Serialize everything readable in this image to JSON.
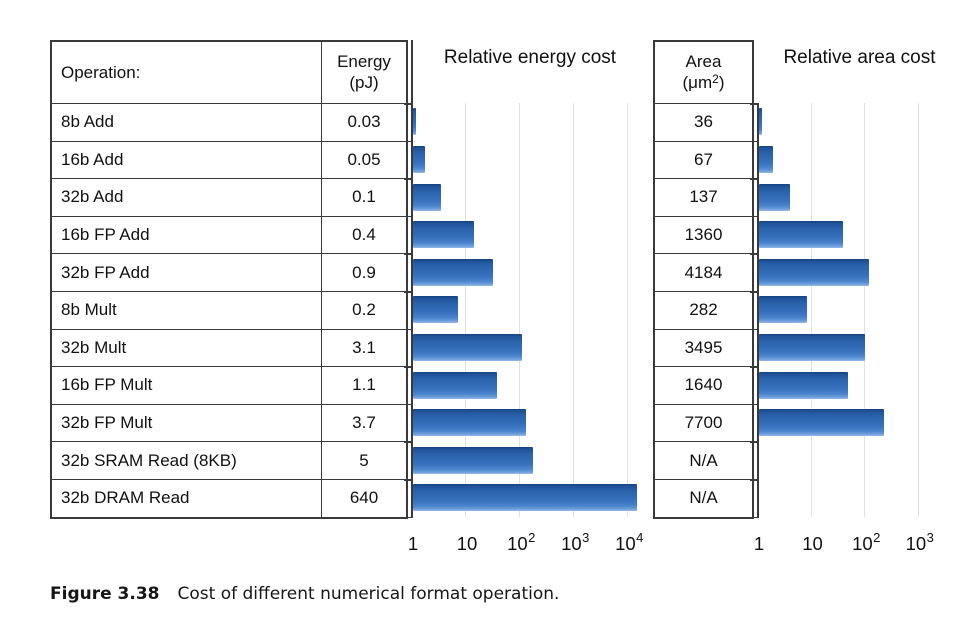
{
  "table": {
    "header": {
      "operation": "Operation:",
      "energy_line1": "Energy",
      "energy_line2": "(pJ)",
      "area_line1": "Area",
      "area_unit_open": "(μm",
      "area_unit_sup": "2",
      "area_unit_close": ")"
    },
    "rows": [
      {
        "operation": "8b Add",
        "energy": "0.03",
        "area": "36"
      },
      {
        "operation": "16b Add",
        "energy": "0.05",
        "area": "67"
      },
      {
        "operation": "32b Add",
        "energy": "0.1",
        "area": "137"
      },
      {
        "operation": "16b FP Add",
        "energy": "0.4",
        "area": "1360"
      },
      {
        "operation": "32b FP Add",
        "energy": "0.9",
        "area": "4184"
      },
      {
        "operation": "8b Mult",
        "energy": "0.2",
        "area": "282"
      },
      {
        "operation": "32b Mult",
        "energy": "3.1",
        "area": "3495"
      },
      {
        "operation": "16b FP Mult",
        "energy": "1.1",
        "area": "1640"
      },
      {
        "operation": "32b FP Mult",
        "energy": "3.7",
        "area": "7700"
      },
      {
        "operation": "32b SRAM Read (8KB)",
        "energy": "5",
        "area": "N/A"
      },
      {
        "operation": "32b DRAM Read",
        "energy": "640",
        "area": "N/A"
      }
    ]
  },
  "chart_data": [
    {
      "type": "bar",
      "orientation": "horizontal",
      "xscale": "log",
      "title": "Relative energy cost",
      "categories": [
        "8b Add",
        "16b Add",
        "32b Add",
        "16b FP Add",
        "32b FP Add",
        "8b Mult",
        "32b Mult",
        "16b FP Mult",
        "32b FP Mult",
        "32b SRAM Read (8KB)",
        "32b DRAM Read"
      ],
      "values_energy_pJ": [
        0.03,
        0.05,
        0.1,
        0.4,
        0.9,
        0.2,
        3.1,
        1.1,
        3.7,
        5,
        640
      ],
      "relative_values": [
        1,
        1.67,
        3.33,
        13.3,
        30,
        6.67,
        103.3,
        36.7,
        123.3,
        166.7,
        21333
      ],
      "xlim": [
        1,
        10000
      ],
      "grid": "vertical-decade-lines",
      "xticks": [
        {
          "base": "1",
          "sup": ""
        },
        {
          "base": "10",
          "sup": ""
        },
        {
          "base": "10",
          "sup": "2"
        },
        {
          "base": "10",
          "sup": "3"
        },
        {
          "base": "10",
          "sup": "4"
        }
      ],
      "bar_color": "#2e66b0"
    },
    {
      "type": "bar",
      "orientation": "horizontal",
      "xscale": "log",
      "title": "Relative area cost",
      "categories": [
        "8b Add",
        "16b Add",
        "32b Add",
        "16b FP Add",
        "32b FP Add",
        "8b Mult",
        "32b Mult",
        "16b FP Mult",
        "32b FP Mult",
        "32b SRAM Read (8KB)",
        "32b DRAM Read"
      ],
      "values_area_um2": [
        36,
        67,
        137,
        1360,
        4184,
        282,
        3495,
        1640,
        7700,
        null,
        null
      ],
      "relative_values": [
        1,
        1.86,
        3.81,
        37.8,
        116.2,
        7.83,
        97.1,
        45.6,
        213.9,
        null,
        null
      ],
      "xlim": [
        1,
        1000
      ],
      "grid": "vertical-decade-lines",
      "xticks": [
        {
          "base": "1",
          "sup": ""
        },
        {
          "base": "10",
          "sup": ""
        },
        {
          "base": "10",
          "sup": "2"
        },
        {
          "base": "10",
          "sup": "3"
        }
      ],
      "bar_color": "#2e66b0"
    }
  ],
  "caption": {
    "label": "Figure 3.38",
    "text": "Cost of different numerical format operation."
  },
  "colors": {
    "bar_gradient_top": "#16427f",
    "bar_gradient_mid": "#3069b4",
    "bar_gradient_bottom": "#96bae8",
    "table_border": "#3a3a3a",
    "gridline": "#dde3ec",
    "text": "#111111"
  }
}
